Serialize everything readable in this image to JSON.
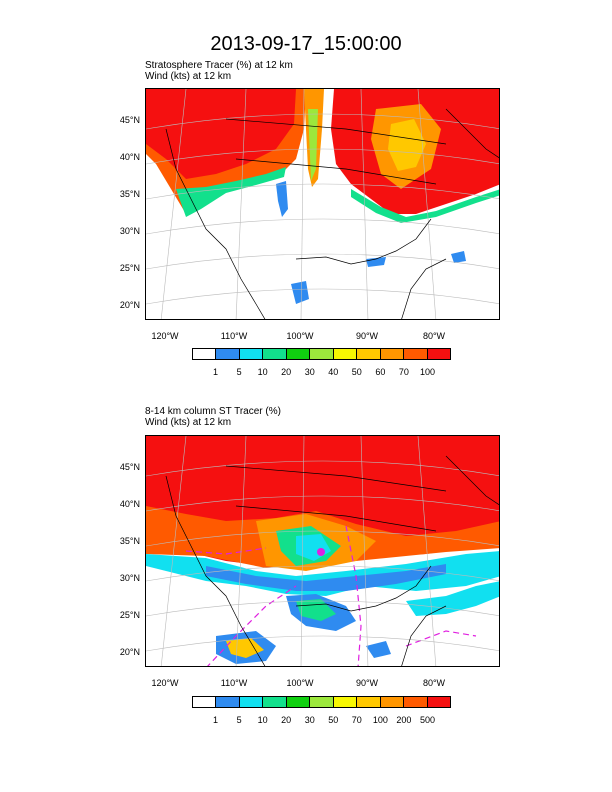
{
  "title": "2013-09-17_15:00:00",
  "panels": [
    {
      "label_line1": "Stratosphere Tracer   (%)     at   12 km",
      "label_line2": "Wind   (kts)     at   12 km",
      "lat_labels": [
        "45°N",
        "40°N",
        "35°N",
        "30°N",
        "25°N",
        "20°N"
      ],
      "lon_labels": [
        "120°W",
        "110°W",
        "100°W",
        "90°W",
        "80°W"
      ],
      "colorbar_colors": [
        "#ffffff",
        "#2f8bf0",
        "#11e0f0",
        "#12e08c",
        "#10d010",
        "#9ce83c",
        "#f7f702",
        "#ffc800",
        "#ff9600",
        "#ff5a00",
        "#f51010"
      ],
      "colorbar_ticks": [
        "1",
        "5",
        "10",
        "20",
        "30",
        "40",
        "50",
        "60",
        "70",
        "100"
      ]
    },
    {
      "label_line1": "8-14 km column ST Tracer   (%)",
      "label_line2": "Wind   (kts)     at   12 km",
      "lat_labels": [
        "45°N",
        "40°N",
        "35°N",
        "30°N",
        "25°N",
        "20°N"
      ],
      "lon_labels": [
        "120°W",
        "110°W",
        "100°W",
        "90°W",
        "80°W"
      ],
      "colorbar_colors": [
        "#ffffff",
        "#2f8bf0",
        "#11e0f0",
        "#12e08c",
        "#10d010",
        "#9ce83c",
        "#f7f702",
        "#ffc800",
        "#ff9600",
        "#ff5a00",
        "#f51010"
      ],
      "colorbar_ticks": [
        "1",
        "5",
        "10",
        "20",
        "30",
        "50",
        "70",
        "100",
        "200",
        "500"
      ]
    }
  ]
}
